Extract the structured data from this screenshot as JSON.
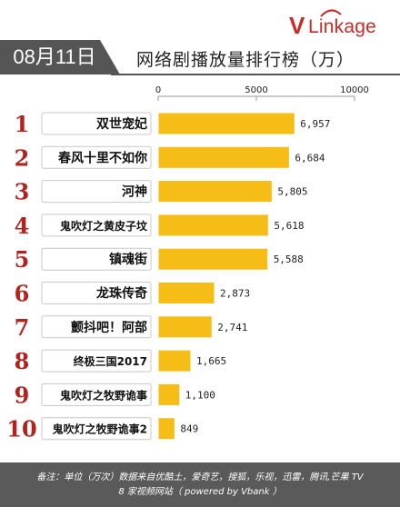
{
  "brand": {
    "logo_v": "V",
    "logo_rest": "Linkage"
  },
  "header": {
    "date": "08月11日"
  },
  "chart_data": {
    "type": "bar",
    "orientation": "horizontal",
    "title": "网络剧播放量排行榜（万）",
    "xlim": [
      0,
      10000
    ],
    "ticks": [
      0,
      5000,
      10000
    ],
    "tick_labels": [
      "0",
      "5000",
      "10000"
    ],
    "ranks": [
      "1",
      "2",
      "3",
      "4",
      "5",
      "6",
      "7",
      "8",
      "9",
      "10"
    ],
    "categories": [
      "双世宠妃",
      "春风十里不如你",
      "河神",
      "鬼吹灯之黄皮子坟",
      "镇魂街",
      "龙珠传奇",
      "颤抖吧！阿部",
      "终极三国2017",
      "鬼吹灯之牧野诡事",
      "鬼吹灯之牧野诡事2"
    ],
    "values": [
      6957,
      6684,
      5805,
      5618,
      5588,
      2873,
      2741,
      1665,
      1100,
      849
    ],
    "value_labels": [
      "6,957",
      "6,684",
      "5,805",
      "5,618",
      "5,588",
      "2,873",
      "2,741",
      "1,665",
      "1,100",
      "849"
    ],
    "bar_color": "#f6bd16",
    "label_box_color": "#ffffff",
    "rank_color": "#b3221e",
    "grid": false
  },
  "footer": {
    "line1": "备注：单位（万次）数据来自优酷土，爱奇艺，搜狐，乐视，迅雷，腾讯,芒果 TV",
    "line2": "8 家视频网站（ powered by Vbank ）"
  },
  "colors": {
    "accent": "#cc2a25",
    "date_tab": "#555555",
    "footer_bg": "#5a5a5a"
  }
}
